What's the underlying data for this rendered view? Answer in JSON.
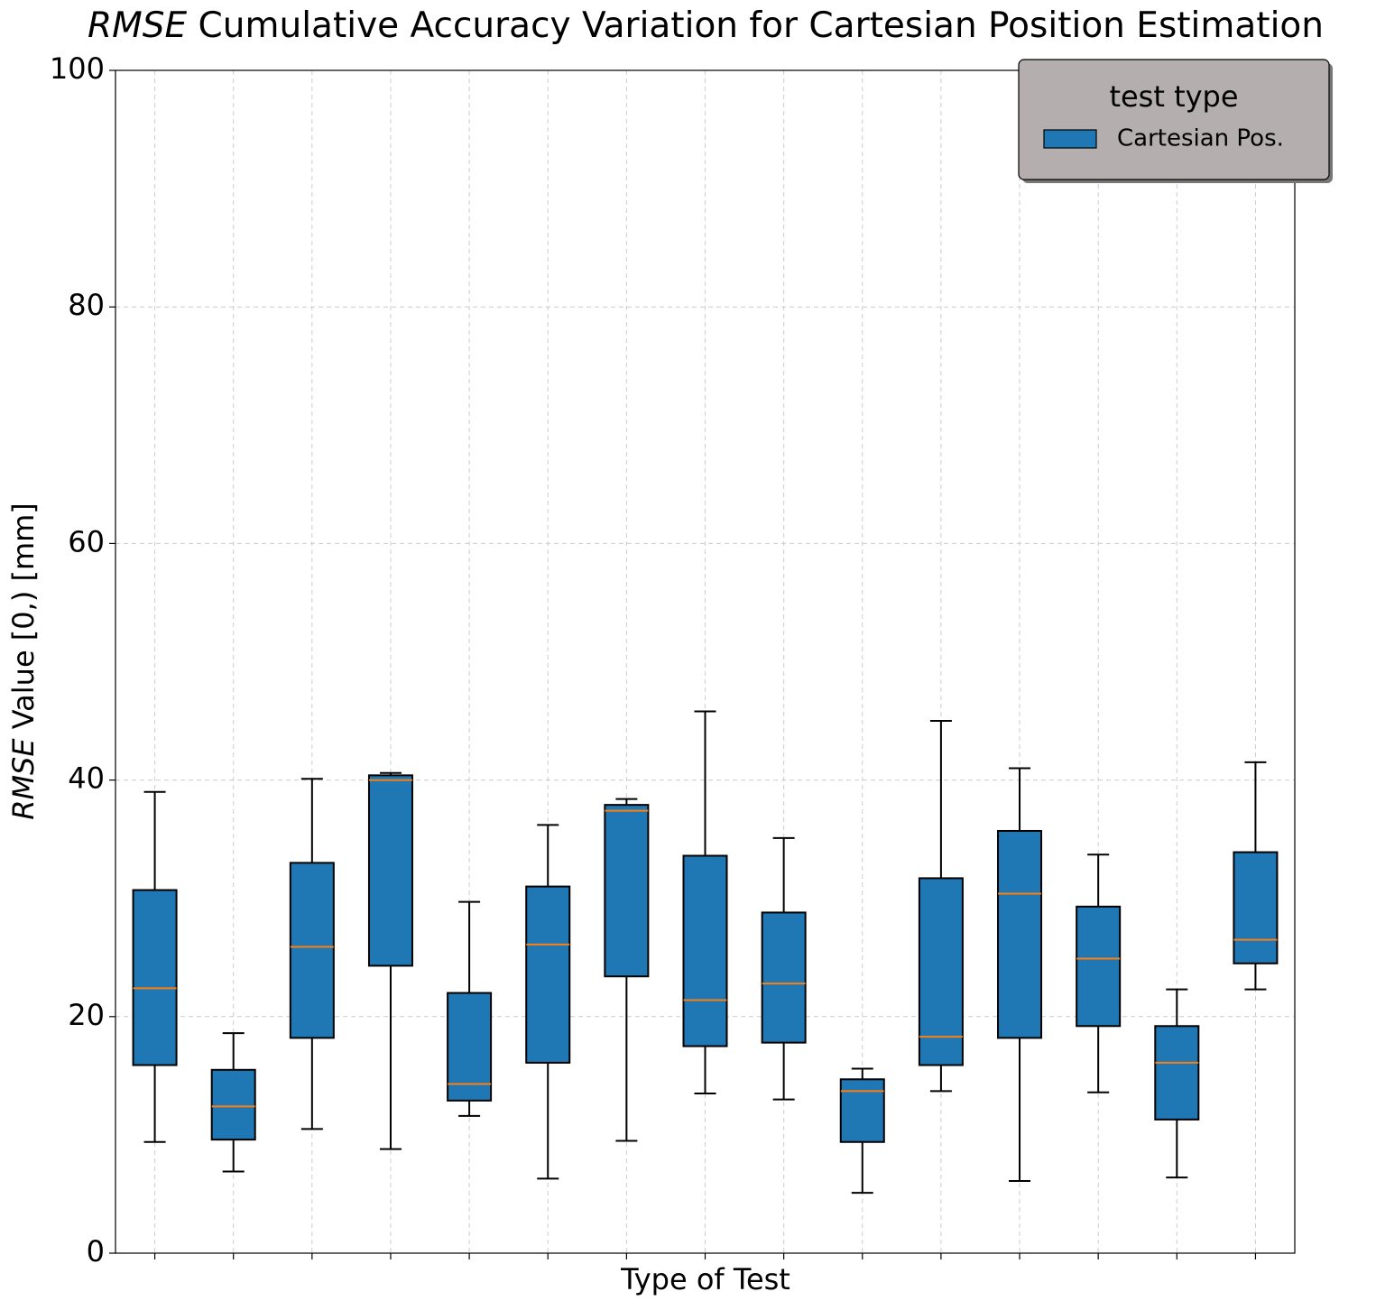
{
  "chart_data": {
    "type": "box",
    "title": {
      "emphasis": "RMSE",
      "text": " Cumulative Accuracy Variation for Cartesian Position Estimation"
    },
    "x_label": "Type of Test",
    "y_label": {
      "emphasis": "RMSE",
      "text": " Value [0,) [mm]"
    },
    "categories": [
      null,
      null,
      null,
      null,
      null,
      null,
      null,
      null,
      null,
      null,
      null,
      null,
      null,
      null,
      null
    ],
    "series": [
      {
        "name": "Cartesian Pos.",
        "color": "#1f77b4",
        "median_color": "#ff7f0e",
        "min": [
          9.4,
          6.9,
          10.5,
          8.8,
          11.6,
          6.3,
          9.5,
          13.5,
          13.0,
          5.1,
          13.7,
          6.1,
          13.6,
          6.4,
          22.3
        ],
        "q1": [
          15.9,
          9.6,
          18.2,
          24.3,
          12.9,
          16.1,
          23.4,
          17.5,
          17.8,
          9.4,
          15.9,
          18.2,
          19.2,
          11.3,
          24.5
        ],
        "median": [
          22.4,
          12.4,
          25.9,
          40.0,
          14.3,
          26.1,
          37.4,
          21.4,
          22.8,
          13.7,
          18.3,
          30.4,
          24.9,
          16.1,
          26.5
        ],
        "q3": [
          30.7,
          15.5,
          33.0,
          40.4,
          22.0,
          31.0,
          37.9,
          33.6,
          28.8,
          14.7,
          31.7,
          35.7,
          29.3,
          19.2,
          33.9
        ],
        "max": [
          39.0,
          18.6,
          40.1,
          40.6,
          29.7,
          36.2,
          38.4,
          45.8,
          35.1,
          15.6,
          45.0,
          41.0,
          33.7,
          22.3,
          41.5
        ]
      }
    ],
    "legend_title": "test type",
    "ylim": [
      0,
      100
    ],
    "yticks": [
      0,
      20,
      40,
      60,
      80,
      100
    ],
    "grid": true,
    "legend": "upper right"
  }
}
